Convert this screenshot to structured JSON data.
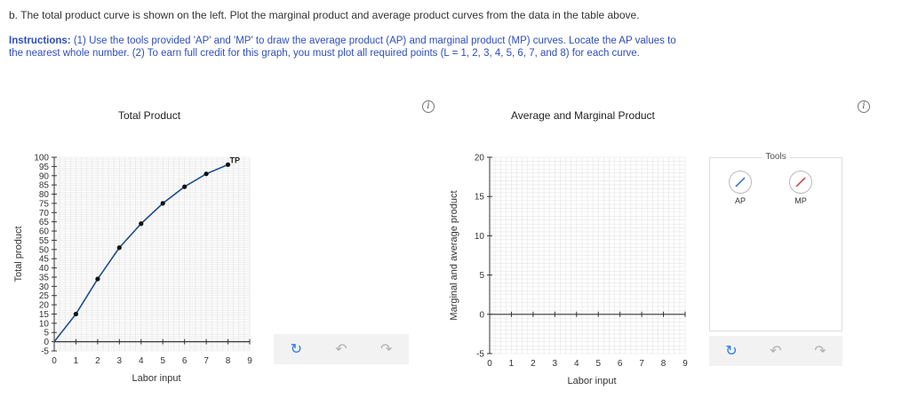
{
  "question": {
    "text": "b. The total product curve is shown on the left. Plot the marginal product and average product curves from the data in the table above."
  },
  "instructions": {
    "label": "Instructions:",
    "text": " (1) Use the tools provided 'AP' and 'MP' to draw the average product (AP) and marginal product (MP) curves. Locate the AP values to the nearest whole number. (2) To earn full credit for this graph, you must plot all required points (L = 1, 2, 3, 4, 5, 6, 7, and 8) for each curve."
  },
  "left_panel": {
    "title": "Total Product",
    "info_symbol": "i"
  },
  "right_panel": {
    "title": "Average and Marginal Product",
    "info_symbol": "i"
  },
  "tools": {
    "label": "Tools",
    "items": [
      {
        "name": "AP",
        "color": "#2a6db5"
      },
      {
        "name": "MP",
        "color": "#d9363e"
      }
    ]
  },
  "toolbar_icons": [
    "reset-icon",
    "undo-icon",
    "redo-icon"
  ],
  "colors": {
    "curve": "#1f4e8c",
    "point": "#111111",
    "grid": "#e4e4e4",
    "reset": "#2a7de1",
    "disabled": "#b0b0b0"
  },
  "chart_data": [
    {
      "type": "line",
      "title": "Total Product",
      "xlabel": "Labor input",
      "ylabel": "Total product",
      "xlim": [
        0,
        9
      ],
      "ylim": [
        -5,
        100
      ],
      "xticks": [
        0,
        1,
        2,
        3,
        4,
        5,
        6,
        7,
        8,
        9
      ],
      "yticks": [
        -5,
        0,
        5,
        10,
        15,
        20,
        25,
        30,
        35,
        40,
        45,
        50,
        55,
        60,
        65,
        70,
        75,
        80,
        85,
        90,
        95,
        100
      ],
      "series": [
        {
          "name": "TP",
          "x": [
            0,
            1,
            2,
            3,
            4,
            5,
            6,
            7,
            8
          ],
          "y": [
            0,
            15,
            34,
            51,
            64,
            75,
            84,
            91,
            96
          ]
        }
      ],
      "grid": true
    },
    {
      "type": "line",
      "title": "Average and Marginal Product",
      "xlabel": "Labor input",
      "ylabel": "Marginal and average product",
      "xlim": [
        0,
        9
      ],
      "ylim": [
        -5,
        20
      ],
      "xticks": [
        0,
        1,
        2,
        3,
        4,
        5,
        6,
        7,
        8,
        9
      ],
      "yticks": [
        -5,
        0,
        5,
        10,
        15,
        20
      ],
      "series": [],
      "grid": true
    }
  ]
}
